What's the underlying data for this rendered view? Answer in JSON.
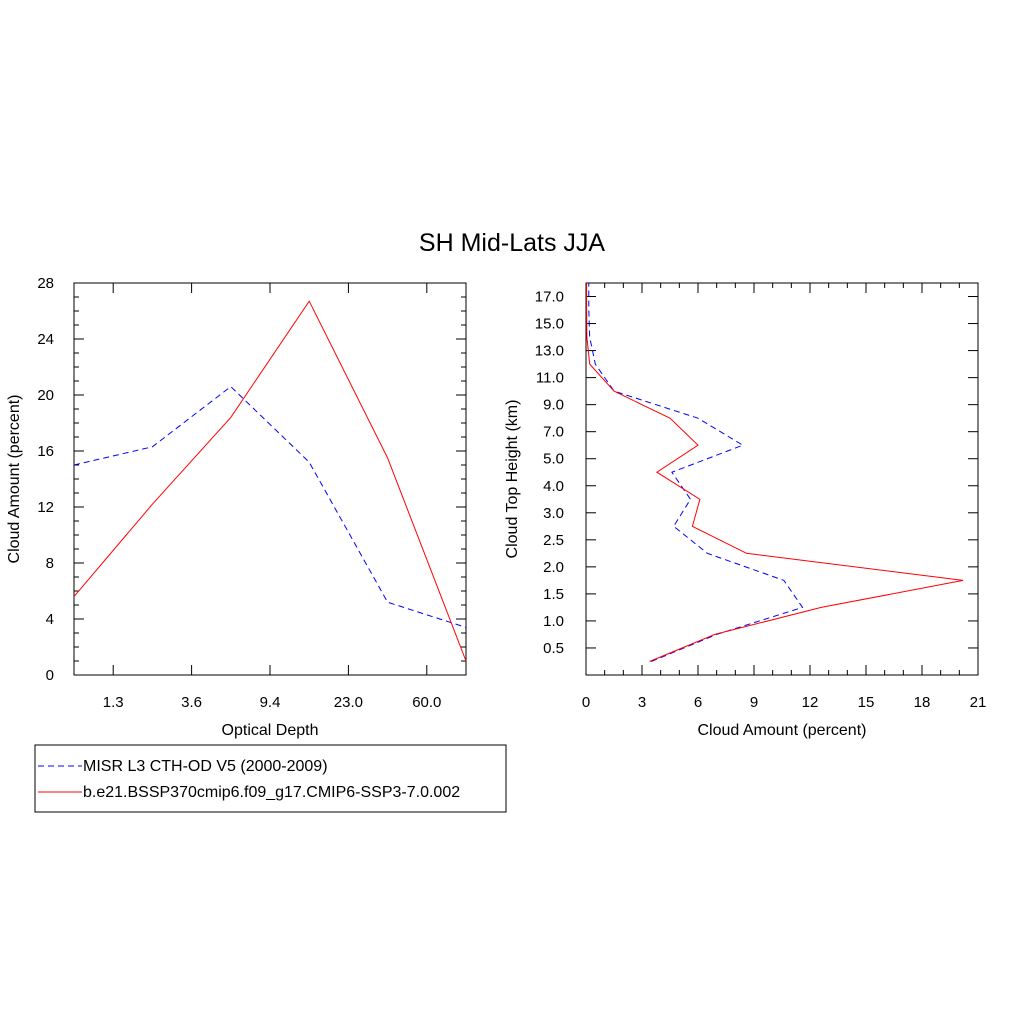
{
  "figure_title": "SH Mid-Lats JJA",
  "series_styles": [
    {
      "color": "#0000ff",
      "dash": "dashed"
    },
    {
      "color": "#ff0000",
      "dash": "solid"
    }
  ],
  "legend": {
    "entries": [
      "MISR L3 CTH-OD V5 (2000-2009)",
      "b.e21.BSSP370cmip6.f09_g17.CMIP6-SSP3-7.0.002"
    ]
  },
  "chart_data": [
    {
      "type": "line",
      "xlabel": "Optical Depth",
      "ylabel": "Cloud Amount (percent)",
      "xticklabels": [
        "1.3",
        "3.6",
        "9.4",
        "23.0",
        "60.0"
      ],
      "yticks": [
        0,
        4,
        8,
        12,
        16,
        20,
        24,
        28
      ],
      "ylim": [
        0,
        28
      ],
      "series": [
        {
          "name": "MISR L3 CTH-OD V5 (2000-2009)",
          "values": [
            15.0,
            16.3,
            20.6,
            15.2,
            5.2,
            3.4
          ]
        },
        {
          "name": "b.e21.BSSP370cmip6.f09_g17.CMIP6-SSP3-7.0.002",
          "values": [
            5.6,
            12.2,
            18.4,
            26.7,
            15.5,
            1.0
          ]
        }
      ]
    },
    {
      "type": "line",
      "xlabel": "Cloud Amount (percent)",
      "ylabel": "Cloud Top Height (km)",
      "xticks": [
        0,
        3,
        6,
        9,
        12,
        15,
        18,
        21
      ],
      "xlim": [
        0,
        21
      ],
      "yticklabels": [
        "0.5",
        "1.0",
        "1.5",
        "2.0",
        "2.5",
        "3.0",
        "4.0",
        "5.0",
        "7.0",
        "9.0",
        "11.0",
        "13.0",
        "15.0",
        "17.0"
      ],
      "series": [
        {
          "name": "MISR L3 CTH-OD V5 (2000-2009)",
          "values": [
            3.5,
            7.0,
            11.6,
            10.6,
            6.5,
            4.7,
            5.6,
            4.6,
            8.4,
            6.0,
            1.5,
            0.5,
            0.2,
            0.15,
            0.15
          ]
        },
        {
          "name": "b.e21.BSSP370cmip6.f09_g17.CMIP6-SSP3-7.0.002",
          "values": [
            3.4,
            6.9,
            12.6,
            20.2,
            8.6,
            5.7,
            6.1,
            3.8,
            6.0,
            4.5,
            1.5,
            0.2,
            0.05,
            0.03,
            0.03
          ]
        }
      ]
    }
  ]
}
